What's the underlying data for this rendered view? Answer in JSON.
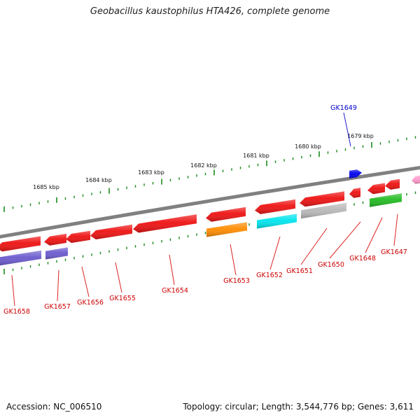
{
  "title": "Geobacillus kaustophilus HTA426, complete genome",
  "footer": {
    "accession": "Accession: NC_006510",
    "topology": "Topology: circular; Length: 3,544,776 bp; Genes: 3,611"
  },
  "colors": {
    "backbone": "#808080",
    "tick": "#1a8a1a",
    "label_red": "#cc0000",
    "label_blue": "#0000cc",
    "leader_red": "#dd2222",
    "leader_blue": "#2222cc"
  },
  "scale_labels": [
    "1679 kbp",
    "1680 kbp",
    "1681 kbp",
    "1682 kbp",
    "1683 kbp",
    "1684 kbp",
    "1685 kbp"
  ],
  "genes": [
    {
      "name": "GK1649",
      "color": "#0000ee"
    },
    {
      "name": "GK1647",
      "color": "#22bb22"
    },
    {
      "name": "GK1648",
      "color": "#ee1111"
    },
    {
      "name": "GK1650",
      "color": "#ee1111"
    },
    {
      "name": "GK1651",
      "color": "#ee1111"
    },
    {
      "name": "GK1652",
      "color": "#ee1111"
    },
    {
      "name": "GK1653",
      "color": "#ee1111"
    },
    {
      "name": "GK1654",
      "color": "#ee1111"
    },
    {
      "name": "GK1655",
      "color": "#ee1111"
    },
    {
      "name": "GK1656",
      "color": "#ee1111"
    },
    {
      "name": "GK1657",
      "color": "#ee1111"
    },
    {
      "name": "GK1658",
      "color": "#ee1111"
    }
  ],
  "unlabeled_features": [
    {
      "color": "#ff8c00"
    },
    {
      "color": "#00e5ee"
    },
    {
      "color": "#b8b8b8"
    },
    {
      "color": "#22bb22"
    },
    {
      "color": "#6a5acd"
    },
    {
      "color": "#6a5acd"
    },
    {
      "color": "#ff99cc"
    },
    {
      "color": "#ee1111"
    }
  ]
}
